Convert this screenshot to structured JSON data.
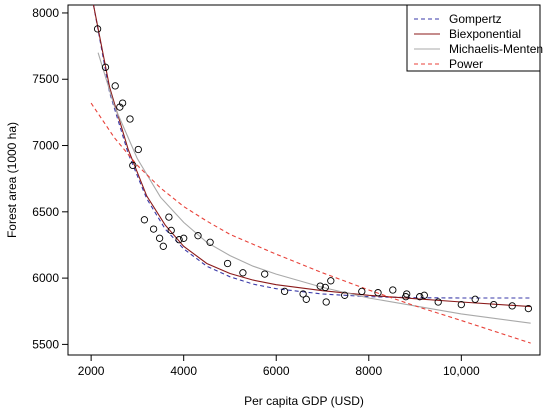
{
  "chart_data": {
    "type": "scatter",
    "title": "",
    "xlabel": "Per capita GDP (USD)",
    "ylabel": "Forest area (1000 ha)",
    "xlim": [
      1500,
      11700
    ],
    "ylim": [
      5420,
      8060
    ],
    "x_ticks": [
      2000,
      4000,
      6000,
      8000,
      10000
    ],
    "x_tick_labels": [
      "2000",
      "4000",
      "6000",
      "8000",
      "10,000"
    ],
    "y_ticks": [
      5500,
      6000,
      6500,
      7000,
      7500,
      8000
    ],
    "y_tick_labels": [
      "5500",
      "6000",
      "6500",
      "7000",
      "7500",
      "8000"
    ],
    "grid": false,
    "legend_position": "top-right",
    "observations": [
      [
        2140,
        7880
      ],
      [
        2310,
        7590
      ],
      [
        2520,
        7450
      ],
      [
        2620,
        7290
      ],
      [
        2680,
        7320
      ],
      [
        2840,
        7200
      ],
      [
        2900,
        6850
      ],
      [
        3020,
        6970
      ],
      [
        3150,
        6440
      ],
      [
        3350,
        6370
      ],
      [
        3480,
        6300
      ],
      [
        3560,
        6240
      ],
      [
        3680,
        6460
      ],
      [
        3730,
        6360
      ],
      [
        3900,
        6290
      ],
      [
        4000,
        6300
      ],
      [
        4310,
        6320
      ],
      [
        4570,
        6270
      ],
      [
        4950,
        6110
      ],
      [
        5280,
        6040
      ],
      [
        5750,
        6030
      ],
      [
        6180,
        5900
      ],
      [
        6580,
        5880
      ],
      [
        6650,
        5840
      ],
      [
        6950,
        5940
      ],
      [
        7060,
        5930
      ],
      [
        7080,
        5820
      ],
      [
        7180,
        5980
      ],
      [
        7480,
        5870
      ],
      [
        7850,
        5900
      ],
      [
        8200,
        5890
      ],
      [
        8520,
        5910
      ],
      [
        8800,
        5860
      ],
      [
        8820,
        5880
      ],
      [
        9100,
        5860
      ],
      [
        9200,
        5870
      ],
      [
        9500,
        5820
      ],
      [
        10000,
        5800
      ],
      [
        10300,
        5840
      ],
      [
        10700,
        5800
      ],
      [
        11100,
        5790
      ],
      [
        11450,
        5770
      ]
    ],
    "series": [
      {
        "name": "Gompertz",
        "color": "#3a3aa8",
        "dash": "dashed",
        "points": [
          [
            2050,
            8060
          ],
          [
            2400,
            7400
          ],
          [
            2800,
            6940
          ],
          [
            3200,
            6600
          ],
          [
            3600,
            6370
          ],
          [
            4000,
            6220
          ],
          [
            4500,
            6090
          ],
          [
            5000,
            6010
          ],
          [
            5500,
            5955
          ],
          [
            6000,
            5920
          ],
          [
            7000,
            5880
          ],
          [
            8000,
            5860
          ],
          [
            9000,
            5852
          ],
          [
            10000,
            5850
          ],
          [
            11500,
            5850
          ]
        ]
      },
      {
        "name": "Biexponential",
        "color": "#8b1a1a",
        "dash": "solid",
        "points": [
          [
            2050,
            8060
          ],
          [
            2400,
            7440
          ],
          [
            2800,
            6970
          ],
          [
            3200,
            6620
          ],
          [
            3600,
            6400
          ],
          [
            4000,
            6240
          ],
          [
            4500,
            6110
          ],
          [
            5000,
            6035
          ],
          [
            5500,
            5985
          ],
          [
            6000,
            5950
          ],
          [
            7000,
            5905
          ],
          [
            8000,
            5870
          ],
          [
            9000,
            5845
          ],
          [
            10000,
            5820
          ],
          [
            11500,
            5785
          ]
        ]
      },
      {
        "name": "Michaelis-Menten",
        "color": "#a9a9a9",
        "dash": "solid",
        "points": [
          [
            2150,
            7700
          ],
          [
            2500,
            7300
          ],
          [
            3000,
            6900
          ],
          [
            3500,
            6610
          ],
          [
            4000,
            6420
          ],
          [
            4500,
            6270
          ],
          [
            5000,
            6170
          ],
          [
            5500,
            6090
          ],
          [
            6000,
            6030
          ],
          [
            7000,
            5930
          ],
          [
            8000,
            5850
          ],
          [
            9000,
            5790
          ],
          [
            10000,
            5730
          ],
          [
            11500,
            5660
          ]
        ]
      },
      {
        "name": "Power",
        "color": "#e8423a",
        "dash": "dashed",
        "points": [
          [
            2000,
            7320
          ],
          [
            2500,
            7060
          ],
          [
            3000,
            6850
          ],
          [
            3500,
            6680
          ],
          [
            4000,
            6540
          ],
          [
            4500,
            6430
          ],
          [
            5000,
            6330
          ],
          [
            6000,
            6180
          ],
          [
            7000,
            6040
          ],
          [
            8000,
            5910
          ],
          [
            9000,
            5790
          ],
          [
            10000,
            5680
          ],
          [
            11500,
            5510
          ]
        ]
      }
    ]
  }
}
